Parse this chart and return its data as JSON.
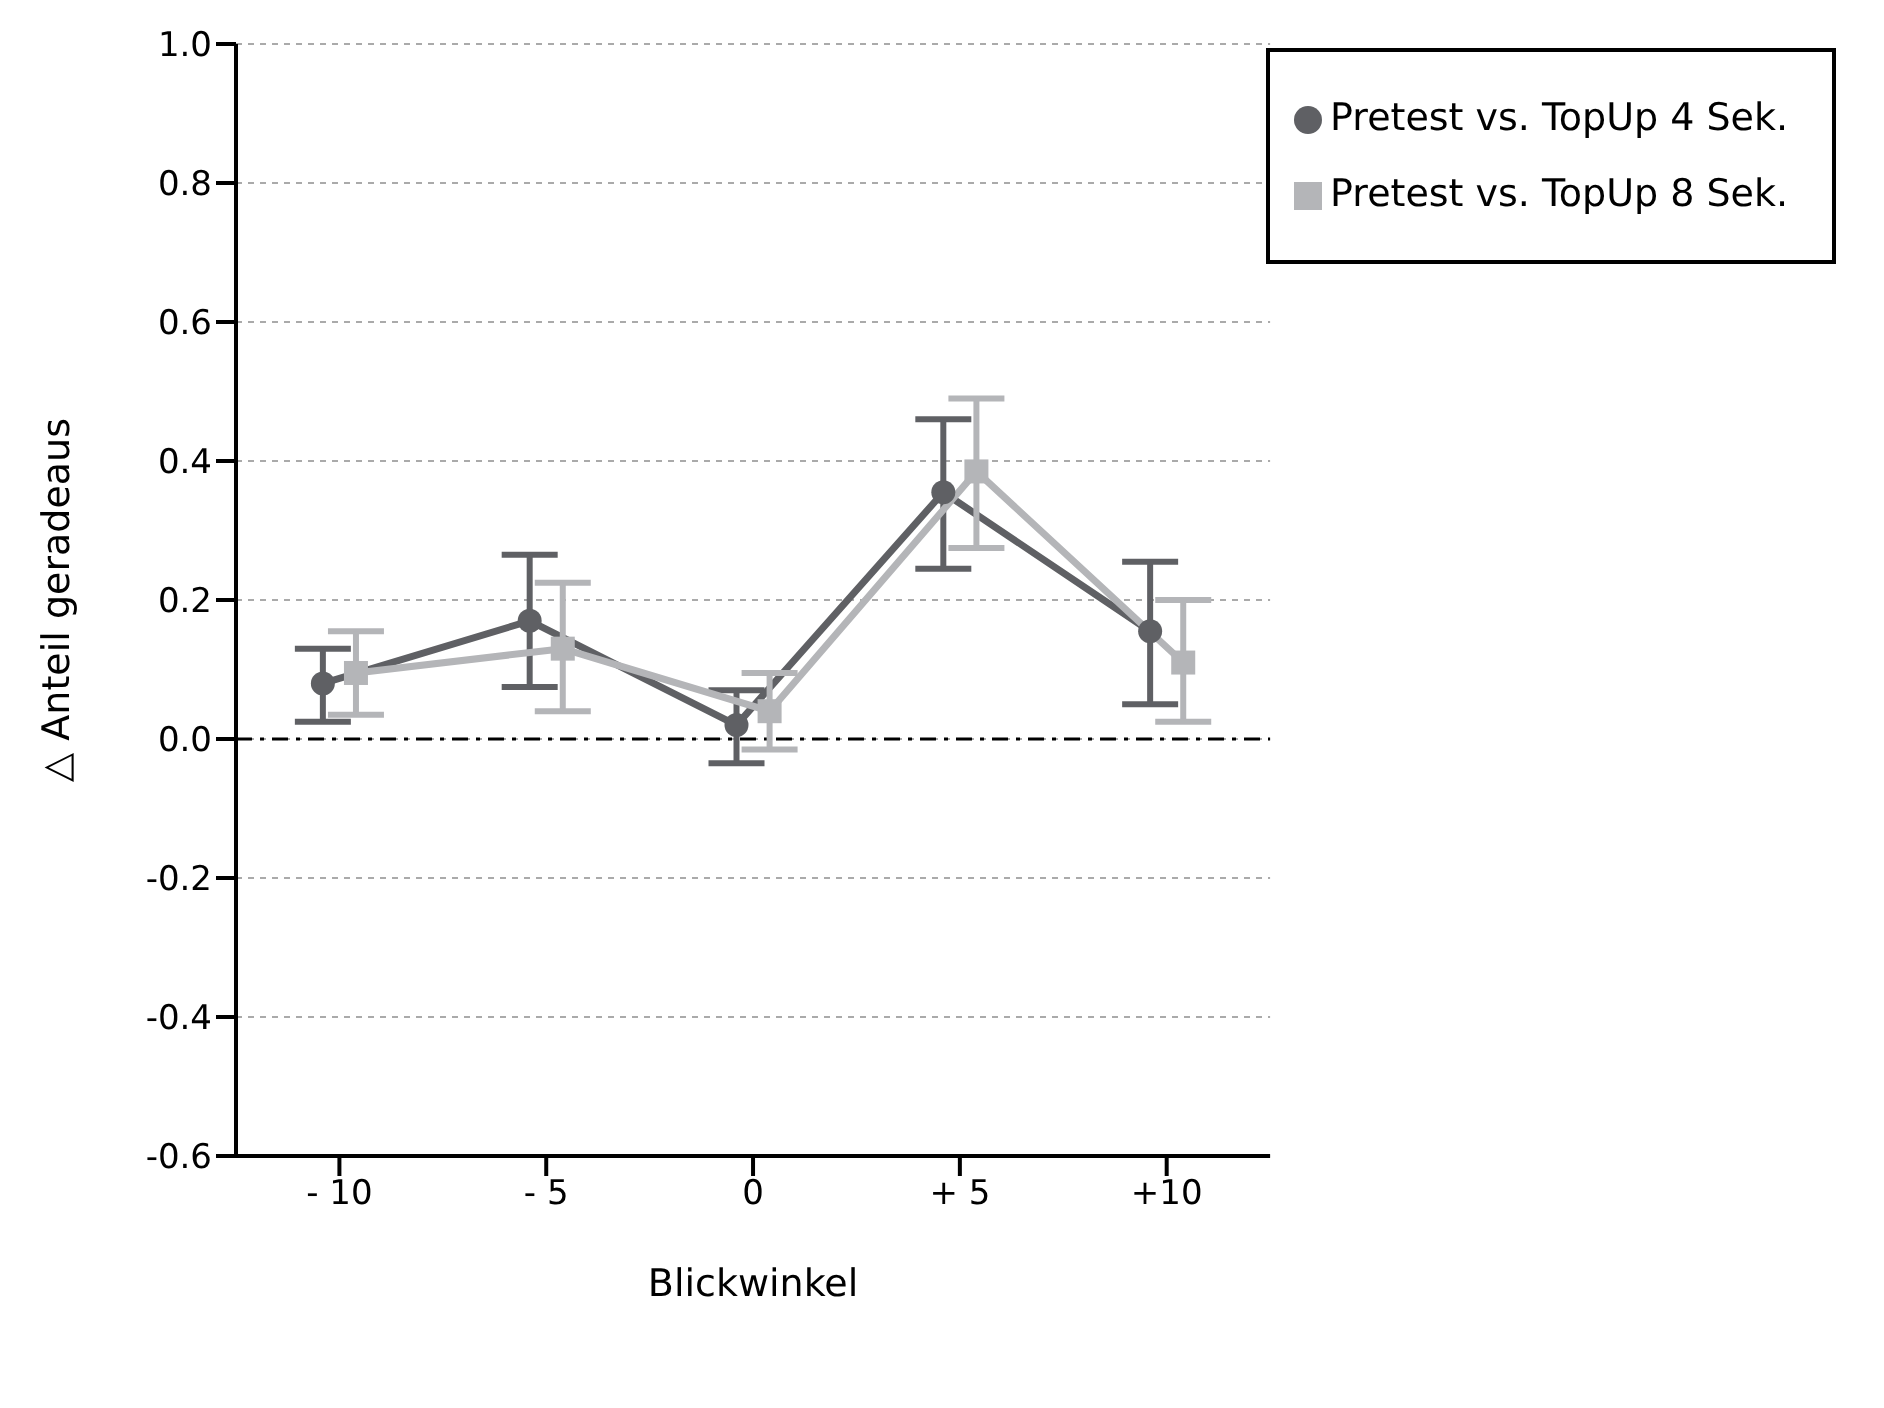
{
  "chart_data": {
    "type": "line",
    "xlabel": "Blickwinkel",
    "ylabel": "△ Anteil geradeaus",
    "categories": [
      "- 10",
      "- 5",
      "0",
      "+ 5",
      "+10"
    ],
    "series": [
      {
        "name": "Pretest vs. TopUp 4 Sek.",
        "color": "#5f6064",
        "marker": "circle",
        "values": [
          0.08,
          0.17,
          0.02,
          0.355,
          0.155
        ],
        "errors": [
          [
            0.025,
            0.13
          ],
          [
            0.075,
            0.265
          ],
          [
            -0.035,
            0.07
          ],
          [
            0.245,
            0.46
          ],
          [
            0.05,
            0.255
          ]
        ]
      },
      {
        "name": "Pretest vs. TopUp 8 Sek.",
        "color": "#b4b5b8",
        "marker": "square",
        "values": [
          0.095,
          0.13,
          0.04,
          0.385,
          0.11
        ],
        "errors": [
          [
            0.035,
            0.155
          ],
          [
            0.04,
            0.225
          ],
          [
            -0.015,
            0.095
          ],
          [
            0.275,
            0.49
          ],
          [
            0.025,
            0.2
          ]
        ]
      }
    ],
    "ylim": [
      -0.6,
      1.0
    ],
    "yticks": [
      {
        "value": -0.6,
        "label": "-0.6"
      },
      {
        "value": -0.4,
        "label": "-0.4"
      },
      {
        "value": -0.2,
        "label": "-0.2"
      },
      {
        "value": 0,
        "label": "0.0"
      },
      {
        "value": 0.2,
        "label": "0.2"
      },
      {
        "value": 0.4,
        "label": "0.4"
      },
      {
        "value": 0.6,
        "label": "0.6"
      },
      {
        "value": 0.8,
        "label": "0.8"
      },
      {
        "value": 1.0,
        "label": "1.0"
      }
    ],
    "ref_lines": [
      {
        "axis": "y",
        "value": 0,
        "color": "#000000",
        "line_style": "dashdot"
      }
    ],
    "grid": "y",
    "legend": "top right",
    "line_style": "solid"
  }
}
